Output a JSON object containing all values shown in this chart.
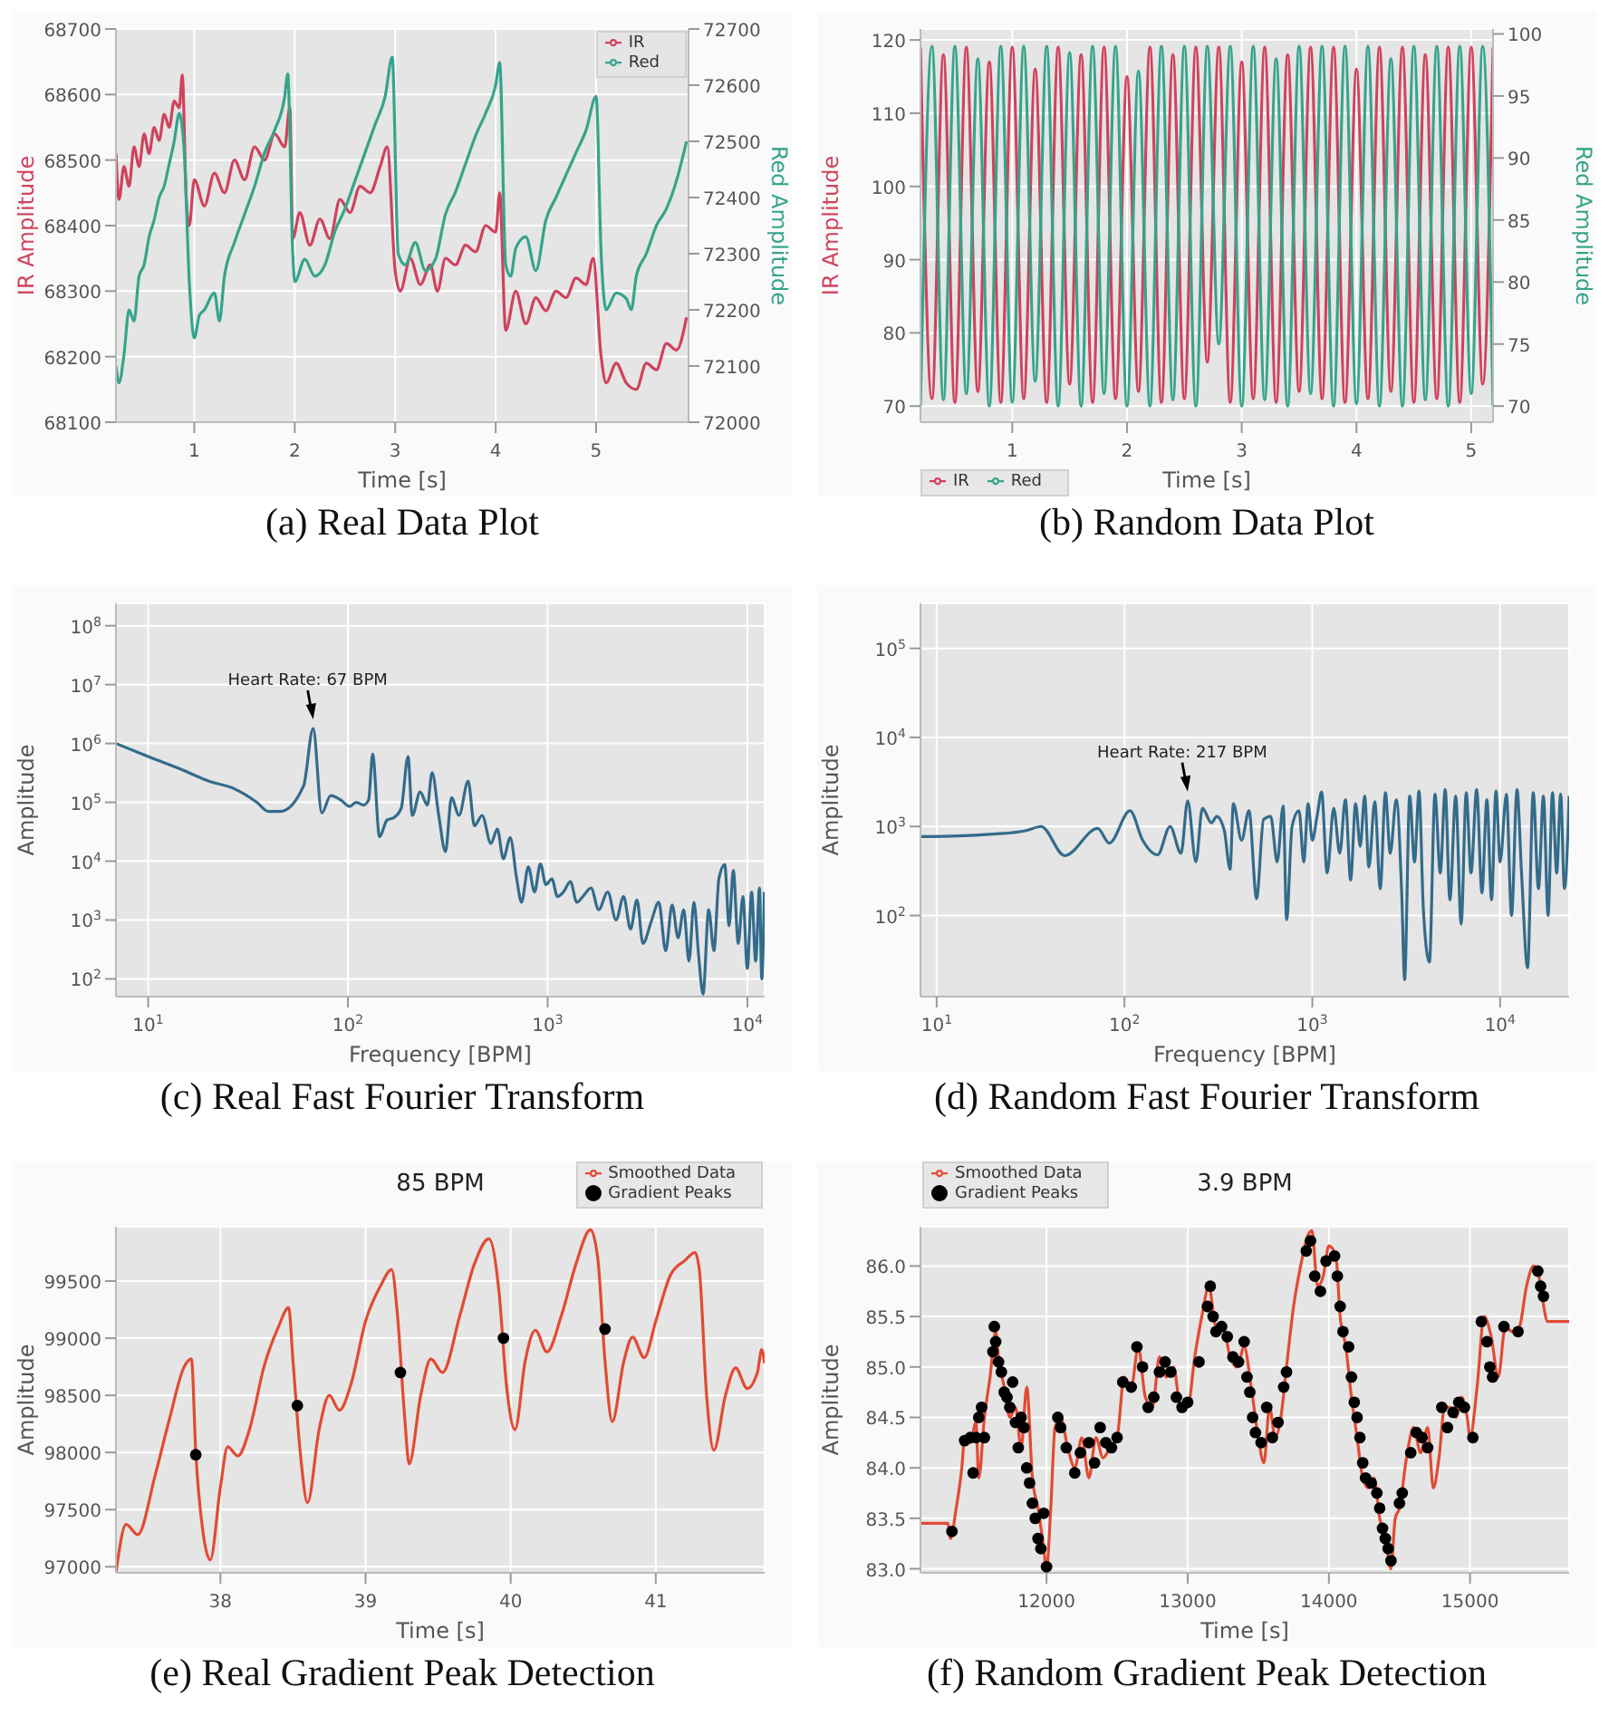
{
  "chart_data": [
    {
      "type": "line",
      "xlabel": "Time [s]",
      "ylabel": "IR Amplitude",
      "y2label": "Red Amplitude",
      "annotations": [
        "(a) Real Data Plot"
      ],
      "xlim": [
        0.22,
        5.92
      ],
      "xticks": [
        1,
        2,
        3,
        4,
        5
      ],
      "ylim": [
        68100,
        68700
      ],
      "yticks": [
        68100,
        68200,
        68300,
        68400,
        68500,
        68600,
        68700
      ],
      "y2lim": [
        72000,
        72700
      ],
      "y2ticks": [
        72000,
        72100,
        72200,
        72300,
        72400,
        72500,
        72600,
        72700
      ],
      "grid": true,
      "legend": "top right",
      "series": [
        {
          "name": "IR",
          "color": "#d0425c",
          "x": [
            0.22,
            0.25,
            0.3,
            0.35,
            0.4,
            0.45,
            0.5,
            0.55,
            0.6,
            0.65,
            0.7,
            0.75,
            0.8,
            0.85,
            0.88,
            0.92,
            0.95,
            1.0,
            1.1,
            1.2,
            1.3,
            1.4,
            1.5,
            1.6,
            1.7,
            1.8,
            1.9,
            1.95,
            1.98,
            2.05,
            2.15,
            2.25,
            2.35,
            2.45,
            2.55,
            2.65,
            2.75,
            2.85,
            2.92,
            3.0,
            3.05,
            3.15,
            3.25,
            3.35,
            3.42,
            3.5,
            3.6,
            3.7,
            3.8,
            3.9,
            4.0,
            4.04,
            4.1,
            4.2,
            4.3,
            4.4,
            4.5,
            4.6,
            4.7,
            4.8,
            4.9,
            4.97,
            5.05,
            5.1,
            5.2,
            5.3,
            5.4,
            5.5,
            5.6,
            5.7,
            5.8,
            5.9
          ],
          "values": [
            68510,
            68440,
            68490,
            68460,
            68520,
            68490,
            68540,
            68510,
            68550,
            68530,
            68570,
            68550,
            68590,
            68580,
            68630,
            68440,
            68400,
            68470,
            68430,
            68480,
            68450,
            68500,
            68470,
            68520,
            68500,
            68540,
            68520,
            68580,
            68380,
            68420,
            68370,
            68410,
            68380,
            68440,
            68420,
            68460,
            68450,
            68490,
            68520,
            68330,
            68300,
            68350,
            68310,
            68340,
            68300,
            68350,
            68340,
            68370,
            68360,
            68400,
            68390,
            68450,
            68240,
            68300,
            68250,
            68290,
            68270,
            68300,
            68290,
            68320,
            68310,
            68350,
            68200,
            68160,
            68190,
            68160,
            68150,
            68190,
            68180,
            68220,
            68210,
            68260
          ]
        },
        {
          "name": "Red",
          "color": "#35a48b",
          "axis": "y2",
          "x": [
            0.22,
            0.25,
            0.3,
            0.35,
            0.4,
            0.45,
            0.5,
            0.55,
            0.6,
            0.65,
            0.7,
            0.75,
            0.8,
            0.85,
            0.9,
            0.95,
            1.0,
            1.05,
            1.1,
            1.2,
            1.25,
            1.3,
            1.4,
            1.5,
            1.6,
            1.7,
            1.8,
            1.9,
            1.93,
            1.98,
            2.0,
            2.1,
            2.2,
            2.3,
            2.4,
            2.5,
            2.6,
            2.7,
            2.8,
            2.9,
            2.97,
            3.03,
            3.1,
            3.2,
            3.3,
            3.4,
            3.5,
            3.6,
            3.7,
            3.8,
            3.9,
            4.0,
            4.04,
            4.1,
            4.15,
            4.2,
            4.3,
            4.4,
            4.5,
            4.6,
            4.7,
            4.8,
            4.9,
            5.0,
            5.05,
            5.1,
            5.2,
            5.3,
            5.35,
            5.4,
            5.5,
            5.6,
            5.7,
            5.8,
            5.9
          ],
          "values": [
            72100,
            72070,
            72120,
            72200,
            72180,
            72260,
            72280,
            72330,
            72360,
            72400,
            72420,
            72460,
            72500,
            72550,
            72480,
            72250,
            72150,
            72190,
            72200,
            72230,
            72180,
            72260,
            72320,
            72370,
            72420,
            72480,
            72520,
            72580,
            72620,
            72300,
            72250,
            72290,
            72260,
            72280,
            72340,
            72380,
            72430,
            72480,
            72530,
            72580,
            72650,
            72300,
            72280,
            72320,
            72270,
            72290,
            72370,
            72410,
            72460,
            72510,
            72550,
            72600,
            72640,
            72280,
            72260,
            72310,
            72330,
            72270,
            72360,
            72400,
            72440,
            72480,
            72520,
            72580,
            72300,
            72200,
            72230,
            72220,
            72200,
            72260,
            72300,
            72350,
            72380,
            72430,
            72500
          ]
        }
      ]
    },
    {
      "type": "line",
      "xlabel": "Time [s]",
      "ylabel": "IR Amplitude",
      "y2label": "Red Amplitude",
      "annotations": [
        "(b) Random Data Plot"
      ],
      "xlim": [
        0.2,
        5.19
      ],
      "xticks": [
        1,
        2,
        3,
        4,
        5
      ],
      "ylim": [
        67.8,
        121.5
      ],
      "yticks": [
        70,
        80,
        90,
        100,
        110,
        120
      ],
      "y2lim": [
        68.7,
        100.4
      ],
      "y2ticks": [
        70,
        75,
        80,
        85,
        90,
        95,
        100
      ],
      "grid": true,
      "legend": "bottom",
      "x": [
        0.2,
        0.3,
        0.4,
        0.5,
        0.6,
        0.7,
        0.8,
        0.9,
        1.0,
        1.1,
        1.2,
        1.3,
        1.4,
        1.5,
        1.6,
        1.7,
        1.8,
        1.9,
        2.0,
        2.1,
        2.2,
        2.3,
        2.4,
        2.5,
        2.6,
        2.7,
        2.8,
        2.9,
        3.0,
        3.1,
        3.2,
        3.3,
        3.4,
        3.5,
        3.6,
        3.7,
        3.8,
        3.9,
        4.0,
        4.1,
        4.2,
        4.3,
        4.4,
        4.5,
        4.6,
        4.7,
        4.8,
        4.9,
        5.0,
        5.1,
        5.19
      ],
      "series": [
        {
          "name": "IR",
          "color": "#d0425c",
          "values": [
            119,
            71,
            118,
            70.5,
            119,
            72,
            117,
            70.5,
            119,
            71,
            116,
            70.5,
            119,
            73,
            118,
            70.5,
            119,
            71,
            115,
            72,
            119,
            70.5,
            118,
            71,
            119,
            76,
            119,
            70.5,
            117,
            71,
            119,
            70.5,
            118,
            72,
            119,
            71,
            119,
            70.5,
            116,
            71,
            119,
            72,
            119,
            70.5,
            118,
            71,
            119,
            70.5,
            119,
            73,
            119
          ]
        },
        {
          "name": "Red",
          "color": "#35a48b",
          "axis": "y2",
          "values": [
            70,
            99,
            70.5,
            99,
            71,
            98,
            70,
            99,
            70.3,
            99,
            72,
            99,
            70,
            98.5,
            70,
            99,
            71,
            99,
            70,
            97,
            70,
            99,
            70.5,
            99,
            70,
            99,
            75,
            99,
            70,
            99,
            70.5,
            98,
            70,
            99,
            71,
            99,
            70,
            99,
            70.2,
            99,
            70,
            98,
            70,
            99,
            70.5,
            99,
            70,
            99,
            71,
            99,
            70
          ]
        }
      ]
    },
    {
      "type": "line",
      "xlabel": "Frequency [BPM]",
      "ylabel": "Amplitude",
      "annotations": [
        "(c) Real Fast Fourier Transform",
        {
          "text": "Heart Rate: 67 BPM",
          "x": 67,
          "y": 1800000
        }
      ],
      "log": "xy",
      "xlim": [
        6.9,
        12200
      ],
      "xticks": [
        {
          "value": 10,
          "label": "10$^{1}$"
        },
        {
          "value": 100,
          "label": "10$^{2}$"
        },
        {
          "value": 1000,
          "label": "10$^{3}$"
        },
        {
          "value": 10000,
          "label": "10$^{4}$"
        }
      ],
      "ylim": [
        50,
        240000000
      ],
      "yticks": [
        {
          "value": 100,
          "label": "10$^{2}$"
        },
        {
          "value": 1000,
          "label": "10$^{3}$"
        },
        {
          "value": 10000,
          "label": "10$^{4}$"
        },
        {
          "value": 100000,
          "label": "10$^{5}$"
        },
        {
          "value": 1000000,
          "label": "10$^{6}$"
        },
        {
          "value": 10000000,
          "label": "10$^{7}$"
        },
        {
          "value": 100000000,
          "label": "10$^{8}$"
        }
      ],
      "grid": true,
      "series": [
        {
          "color": "#336b8b",
          "x": [
            6.9,
            10,
            15,
            20,
            27,
            35,
            40,
            46,
            60,
            67,
            74,
            82,
            92,
            102,
            110,
            120,
            127,
            133,
            144,
            157,
            170,
            185,
            200,
            210,
            230,
            250,
            264,
            285,
            308,
            330,
            360,
            400,
            430,
            470,
            520,
            560,
            600,
            650,
            700,
            740,
            800,
            860,
            920,
            980,
            1050,
            1120,
            1200,
            1300,
            1400,
            1500,
            1650,
            1800,
            2000,
            2200,
            2400,
            2600,
            2800,
            3000,
            3300,
            3600,
            3900,
            4200,
            4500,
            4800,
            5100,
            5400,
            5700,
            6000,
            6400,
            6800,
            7200,
            7700,
            8100,
            8500,
            9000,
            9500,
            10000,
            10500,
            11000,
            11500,
            11800,
            12160
          ],
          "values": [
            1000000,
            600000,
            350000,
            230000,
            170000,
            100000,
            70000,
            70000,
            190000,
            1800000,
            66000,
            130000,
            110000,
            85000,
            100000,
            90000,
            110000,
            660000,
            26000,
            50000,
            55000,
            80000,
            600000,
            60000,
            150000,
            90000,
            320000,
            60000,
            14500,
            120000,
            60000,
            230000,
            40000,
            60000,
            20000,
            35000,
            11000,
            25000,
            5000,
            2000,
            8000,
            3000,
            9000,
            4000,
            5000,
            2500,
            3000,
            4500,
            2000,
            2500,
            3500,
            1500,
            3000,
            1000,
            2500,
            700,
            2200,
            400,
            940,
            2000,
            300,
            1800,
            500,
            1500,
            200,
            2000,
            250,
            55,
            1500,
            300,
            5000,
            8700,
            800,
            7000,
            400,
            2500,
            150,
            3000,
            200,
            3500,
            100,
            3000
          ]
        }
      ]
    },
    {
      "type": "line",
      "xlabel": "Frequency [BPM]",
      "ylabel": "Amplitude",
      "annotations": [
        "(d) Random Fast Fourier Transform",
        {
          "text": "Heart Rate: 217 BPM",
          "x": 217,
          "y": 1950
        }
      ],
      "log": "xy",
      "xlim": [
        8.2,
        23300
      ],
      "xticks": [
        {
          "value": 10,
          "label": "10$^{1}$"
        },
        {
          "value": 100,
          "label": "10$^{2}$"
        },
        {
          "value": 1000,
          "label": "10$^{3}$"
        },
        {
          "value": 10000,
          "label": "10$^{4}$"
        }
      ],
      "ylim": [
        12.3,
        320000
      ],
      "yticks": [
        {
          "value": 100,
          "label": "10$^{2}$"
        },
        {
          "value": 1000,
          "label": "10$^{3}$"
        },
        {
          "value": 10000,
          "label": "10$^{4}$"
        },
        {
          "value": 100000,
          "label": "10$^{5}$"
        }
      ],
      "grid": true,
      "series": [
        {
          "color": "#336b8b",
          "x": [
            8.2,
            12,
            20,
            30,
            36,
            48,
            72,
            83,
            107,
            125,
            150,
            175,
            200,
            217,
            240,
            260,
            290,
            310,
            340,
            365,
            380,
            420,
            460,
            505,
            550,
            600,
            650,
            700,
            730,
            780,
            850,
            900,
            950,
            1000,
            1060,
            1120,
            1200,
            1300,
            1400,
            1500,
            1600,
            1700,
            1800,
            1900,
            2000,
            2150,
            2300,
            2450,
            2600,
            2800,
            3000,
            3100,
            3300,
            3500,
            3700,
            3900,
            4200,
            4500,
            4800,
            5100,
            5400,
            5800,
            6200,
            6600,
            7000,
            7500,
            8000,
            8500,
            9000,
            9500,
            10000,
            10800,
            11500,
            12300,
            13000,
            14000,
            15000,
            16000,
            17000,
            18000,
            19000,
            20000,
            21000,
            22000,
            23300
          ],
          "values": [
            770,
            780,
            820,
            900,
            1000,
            470,
            950,
            650,
            1500,
            700,
            480,
            1000,
            500,
            1950,
            400,
            1600,
            1100,
            1300,
            900,
            330,
            1800,
            700,
            1500,
            155,
            1200,
            1300,
            400,
            1700,
            90,
            1000,
            1500,
            400,
            1800,
            700,
            1300,
            2450,
            300,
            1600,
            500,
            2000,
            250,
            1800,
            600,
            2200,
            350,
            1900,
            200,
            2400,
            500,
            2000,
            150,
            19,
            2200,
            400,
            2500,
            120,
            30,
            2300,
            300,
            2600,
            150,
            2200,
            80,
            2400,
            300,
            2600,
            180,
            2000,
            150,
            2500,
            400,
            2300,
            100,
            2600,
            300,
            26,
            2400,
            200,
            2200,
            100,
            2400,
            300,
            2300,
            200,
            2200
          ]
        }
      ]
    },
    {
      "type": "line",
      "title": "85 BPM",
      "xlabel": "Time [s]",
      "ylabel": "Amplitude",
      "annotations": [
        "(e) Real Gradient Peak Detection"
      ],
      "xlim": [
        37.28,
        41.75
      ],
      "xticks": [
        38,
        39,
        40,
        41
      ],
      "ylim": [
        96947,
        99976
      ],
      "yticks": [
        97000,
        97500,
        98000,
        98500,
        99000,
        99500
      ],
      "grid": true,
      "legend": "top right",
      "series": [
        {
          "name": "Smoothed Data",
          "color": "#e24a33",
          "x": [
            37.28,
            37.35,
            37.43,
            37.55,
            37.65,
            37.75,
            37.8,
            37.83,
            37.88,
            37.93,
            38.0,
            38.05,
            38.12,
            38.2,
            38.3,
            38.4,
            38.47,
            38.5,
            38.55,
            38.6,
            38.68,
            38.75,
            38.82,
            38.9,
            39.0,
            39.1,
            39.18,
            39.22,
            39.27,
            39.3,
            39.38,
            39.45,
            39.53,
            39.65,
            39.75,
            39.85,
            39.92,
            39.97,
            40.03,
            40.1,
            40.17,
            40.25,
            40.35,
            40.45,
            40.55,
            40.6,
            40.65,
            40.7,
            40.78,
            40.84,
            40.92,
            41.0,
            41.1,
            41.2,
            41.27,
            41.3,
            41.35,
            41.4,
            41.48,
            41.55,
            41.63,
            41.7,
            41.73,
            41.75
          ],
          "values": [
            96950,
            97370,
            97280,
            97800,
            98300,
            98750,
            98820,
            98000,
            97300,
            97060,
            97700,
            98050,
            97970,
            98200,
            98750,
            99100,
            99270,
            98800,
            98000,
            97560,
            98200,
            98500,
            98370,
            98600,
            99150,
            99450,
            99600,
            99200,
            98300,
            97900,
            98500,
            98820,
            98700,
            99200,
            99650,
            99870,
            99400,
            98600,
            98200,
            98800,
            99070,
            98880,
            99200,
            99650,
            99950,
            99700,
            98800,
            98270,
            98800,
            99010,
            98830,
            99150,
            99550,
            99680,
            99750,
            99600,
            98500,
            98020,
            98500,
            98740,
            98560,
            98700,
            98900,
            98780
          ]
        },
        {
          "type": "scatter",
          "name": "Gradient Peaks",
          "color": "#000000",
          "marker": "circle",
          "x": [
            37.83,
            38.53,
            39.24,
            39.95,
            40.65
          ],
          "values": [
            97980,
            98410,
            98700,
            99000,
            99080
          ]
        }
      ]
    },
    {
      "type": "line",
      "title": "3.9 BPM",
      "xlabel": "Time [s]",
      "ylabel": "Amplitude",
      "annotations": [
        "(f) Random Gradient Peak Detection"
      ],
      "xlim": [
        11107,
        15702
      ],
      "xticks": [
        12000,
        13000,
        14000,
        15000
      ],
      "ylim": [
        82.96,
        86.39
      ],
      "yticks": [
        {
          "value": 83,
          "label": "83.0"
        },
        {
          "value": 83.5,
          "label": "83.5"
        },
        {
          "value": 84,
          "label": "84.0"
        },
        {
          "value": 84.5,
          "label": "84.5"
        },
        {
          "value": 85,
          "label": "85.0"
        },
        {
          "value": 85.5,
          "label": "85.5"
        },
        {
          "value": 86,
          "label": "86.0"
        }
      ],
      "grid": true,
      "legend": "top left",
      "series": [
        {
          "name": "Smoothed Data",
          "color": "#e24a33",
          "x": [
            11107,
            11300,
            11320,
            11360,
            11400,
            11420,
            11460,
            11500,
            11520,
            11560,
            11600,
            11640,
            11660,
            11700,
            11740,
            11780,
            11820,
            11860,
            11900,
            11940,
            11980,
            12000,
            12030,
            12060,
            12100,
            12150,
            12200,
            12250,
            12300,
            12350,
            12400,
            12450,
            12500,
            12550,
            12600,
            12650,
            12700,
            12750,
            12800,
            12850,
            12900,
            12950,
            13000,
            13050,
            13100,
            13150,
            13200,
            13250,
            13300,
            13350,
            13400,
            13450,
            13500,
            13540,
            13580,
            13620,
            13660,
            13700,
            13750,
            13800,
            13850,
            13880,
            13920,
            13960,
            14000,
            14050,
            14080,
            14120,
            14160,
            14200,
            14240,
            14280,
            14320,
            14360,
            14400,
            14440,
            14470,
            14500,
            14550,
            14600,
            14650,
            14700,
            14740,
            14780,
            14820,
            14860,
            14900,
            14940,
            14980,
            15000,
            15050,
            15100,
            15150,
            15200,
            15250,
            15300,
            15350,
            15400,
            15450,
            15480,
            15510,
            15550,
            15702
          ],
          "values": [
            83.45,
            83.45,
            83.3,
            83.6,
            84.0,
            84.3,
            84.25,
            84.45,
            83.9,
            84.5,
            84.9,
            85.35,
            85.1,
            84.8,
            84.5,
            84.6,
            84.2,
            84.8,
            83.9,
            83.6,
            83.2,
            83.0,
            83.6,
            84.4,
            84.5,
            84.2,
            84.0,
            84.3,
            83.9,
            84.3,
            84.1,
            84.2,
            84.3,
            84.9,
            84.8,
            85.2,
            84.7,
            84.6,
            85.1,
            84.9,
            85.0,
            84.6,
            84.6,
            85.1,
            85.5,
            85.8,
            85.4,
            85.4,
            85.1,
            85.0,
            85.2,
            84.8,
            84.3,
            84.05,
            84.6,
            84.3,
            84.5,
            85.0,
            85.6,
            86.0,
            86.3,
            86.35,
            85.8,
            85.9,
            86.2,
            86.1,
            85.5,
            85.2,
            84.7,
            84.3,
            83.9,
            83.8,
            83.9,
            83.5,
            83.3,
            83.0,
            83.5,
            83.6,
            84.1,
            84.4,
            84.15,
            84.4,
            83.8,
            84.1,
            84.6,
            84.6,
            84.5,
            84.7,
            84.5,
            84.3,
            84.8,
            85.5,
            85.3,
            84.9,
            85.4,
            85.35,
            85.4,
            85.8,
            86.0,
            85.95,
            85.7,
            85.45,
            85.45
          ]
        },
        {
          "type": "scatter",
          "name": "Gradient Peaks",
          "color": "#000000",
          "marker": "circle",
          "x": [
            11330,
            11420,
            11460,
            11480,
            11500,
            11520,
            11540,
            11560,
            11620,
            11630,
            11640,
            11660,
            11680,
            11700,
            11720,
            11740,
            11760,
            11780,
            11800,
            11820,
            11840,
            11860,
            11880,
            11900,
            11920,
            11940,
            11960,
            11980,
            12000,
            12080,
            12100,
            12140,
            12200,
            12240,
            12300,
            12340,
            12380,
            12420,
            12460,
            12500,
            12540,
            12600,
            12640,
            12680,
            12720,
            12760,
            12800,
            12840,
            12880,
            12920,
            12960,
            13000,
            13080,
            13140,
            13160,
            13180,
            13200,
            13240,
            13280,
            13320,
            13360,
            13400,
            13420,
            13440,
            13460,
            13480,
            13520,
            13560,
            13600,
            13640,
            13680,
            13700,
            13840,
            13870,
            13900,
            13940,
            13980,
            14040,
            14060,
            14080,
            14100,
            14140,
            14160,
            14180,
            14200,
            14220,
            14240,
            14260,
            14300,
            14340,
            14360,
            14380,
            14400,
            14420,
            14440,
            14500,
            14520,
            14580,
            14620,
            14660,
            14700,
            14800,
            14840,
            14880,
            14920,
            14960,
            15020,
            15080,
            15120,
            15140,
            15160,
            15240,
            15340,
            15480,
            15500,
            15520
          ],
          "values": [
            83.37,
            84.27,
            84.3,
            83.95,
            84.3,
            84.5,
            84.6,
            84.3,
            85.15,
            85.4,
            85.25,
            85.05,
            84.95,
            84.75,
            84.7,
            84.6,
            84.85,
            84.45,
            84.2,
            84.5,
            84.4,
            84.0,
            83.85,
            83.65,
            83.5,
            83.3,
            83.2,
            83.55,
            83.02,
            84.5,
            84.4,
            84.2,
            83.95,
            84.15,
            84.25,
            84.05,
            84.4,
            84.25,
            84.2,
            84.3,
            84.85,
            84.8,
            85.2,
            85.0,
            84.6,
            84.7,
            84.95,
            85.05,
            84.95,
            84.7,
            84.6,
            84.65,
            85.05,
            85.6,
            85.8,
            85.5,
            85.35,
            85.4,
            85.3,
            85.1,
            85.05,
            85.25,
            84.9,
            84.75,
            84.5,
            84.35,
            84.25,
            84.6,
            84.3,
            84.45,
            84.8,
            84.95,
            86.15,
            86.25,
            85.9,
            85.75,
            86.05,
            86.1,
            85.9,
            85.6,
            85.35,
            85.2,
            84.9,
            84.65,
            84.5,
            84.3,
            84.05,
            83.9,
            83.85,
            83.75,
            83.6,
            83.4,
            83.3,
            83.2,
            83.08,
            83.65,
            83.75,
            84.15,
            84.35,
            84.3,
            84.2,
            84.6,
            84.4,
            84.55,
            84.65,
            84.6,
            84.3,
            85.45,
            85.25,
            85.0,
            84.9,
            85.4,
            85.35,
            85.95,
            85.8,
            85.7
          ]
        }
      ]
    }
  ]
}
